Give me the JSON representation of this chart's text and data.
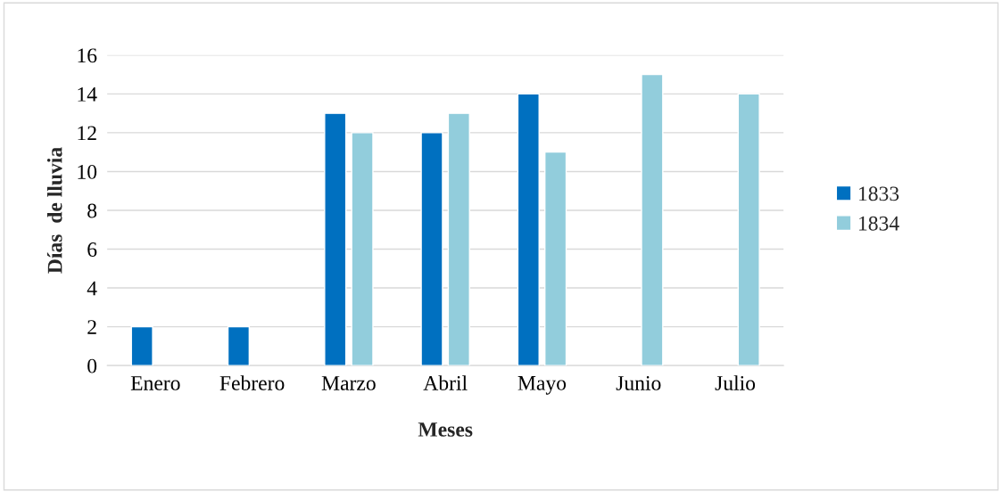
{
  "chart_data": {
    "type": "bar",
    "xlabel": "Meses",
    "ylabel": "Días  de lluvia",
    "categories": [
      "Enero",
      "Febrero",
      "Marzo",
      "Abril",
      "Mayo",
      "Junio",
      "Julio"
    ],
    "series": [
      {
        "name": "1833",
        "color": "#0070c0",
        "values": [
          2,
          2,
          13,
          12,
          14,
          null,
          null
        ]
      },
      {
        "name": "1834",
        "color": "#92cddc",
        "values": [
          null,
          null,
          12,
          13,
          11,
          15,
          14
        ]
      }
    ],
    "ylim": [
      0,
      16
    ],
    "yticks": [
      0,
      2,
      4,
      6,
      8,
      10,
      12,
      14,
      16
    ],
    "grid": "y",
    "legend": "right"
  }
}
